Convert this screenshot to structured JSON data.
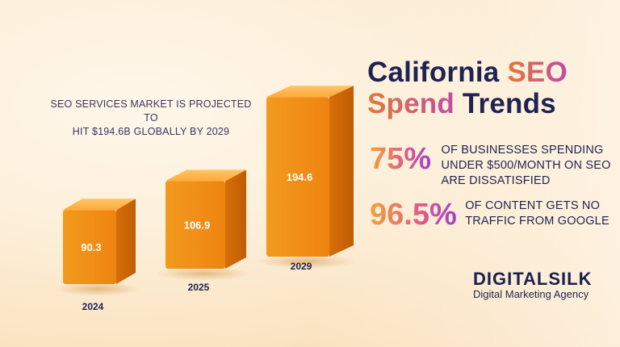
{
  "header": {
    "title_line1_part1": "California",
    "title_line1_part2": "SEO",
    "title_line2_part1": "Spend",
    "title_line2_part2": "Trends"
  },
  "subtitle": {
    "line1": "SEO SERVICES MARKET IS PROJECTED TO",
    "line2": "HIT $194.6B GLOBALLY BY 2029"
  },
  "stats": [
    {
      "pct": "75%",
      "lines": [
        "OF BUSINESSES SPENDING",
        "UNDER $500/MONTH ON SEO",
        "ARE DISSATISFIED"
      ]
    },
    {
      "pct": "96.5%",
      "lines": [
        "OF CONTENT GETS NO",
        "TRAFFIC FROM GOOGLE"
      ]
    }
  ],
  "brand": {
    "name_part1": "DIGITAL",
    "name_part2": "SILK",
    "tagline": "Digital Marketing Agency"
  },
  "colors": {
    "bar_front": "#f08a14",
    "bar_side": "#d46a08",
    "bar_top": "#ffb347",
    "title_dark": "#1f2351"
  },
  "chart_data": {
    "type": "bar",
    "title": "",
    "categories": [
      "2024",
      "2025",
      "2029"
    ],
    "values": [
      90.3,
      106.9,
      194.6
    ],
    "data_labels": [
      "90.3",
      "106.9",
      "194.6"
    ],
    "xlabel": "",
    "ylabel": "",
    "legend": "none",
    "grid": false
  }
}
